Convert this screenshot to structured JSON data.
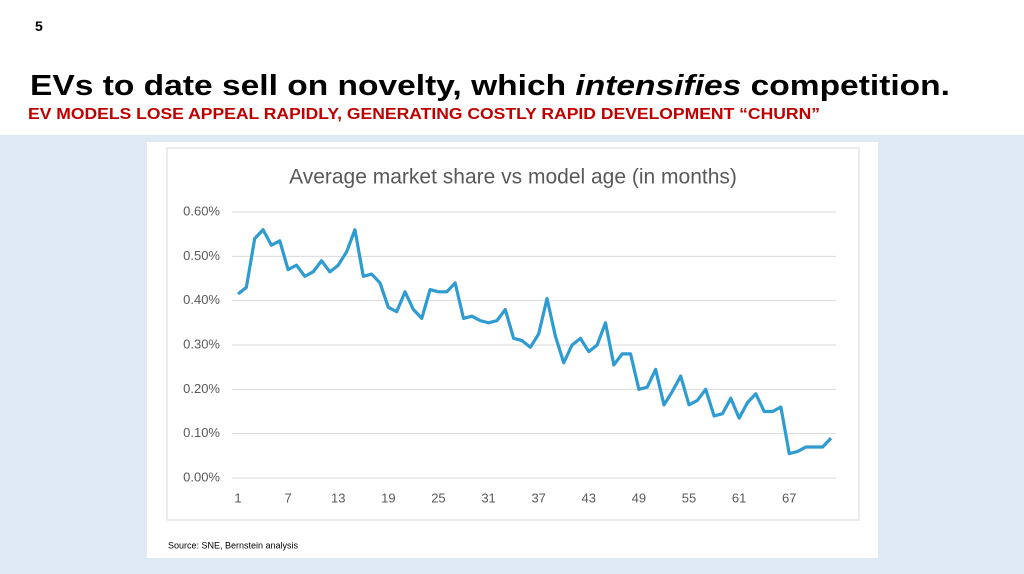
{
  "slide_number": "5",
  "title": [
    "EVs to date sell on novelty, which ",
    "intensifies",
    " competition."
  ],
  "subtitle": "EV MODELS LOSE APPEAL RAPIDLY, GENERATING COSTLY RAPID DEVELOPMENT “CHURN”",
  "chart_data": {
    "type": "line",
    "title": "Average market share vs model age (in months)",
    "source": "Source: SNE, Bernstein analysis",
    "x": [
      1,
      2,
      3,
      4,
      5,
      6,
      7,
      8,
      9,
      10,
      11,
      12,
      13,
      14,
      15,
      16,
      17,
      18,
      19,
      20,
      21,
      22,
      23,
      24,
      25,
      26,
      27,
      28,
      29,
      30,
      31,
      32,
      33,
      34,
      35,
      36,
      37,
      38,
      39,
      40,
      41,
      42,
      43,
      44,
      45,
      46,
      47,
      48,
      49,
      50,
      51,
      52,
      53,
      54,
      55,
      56,
      57,
      58,
      59,
      60,
      61,
      62,
      63,
      64,
      65,
      66,
      67,
      68,
      69,
      70,
      71,
      72
    ],
    "values": [
      0.415,
      0.43,
      0.54,
      0.56,
      0.525,
      0.535,
      0.47,
      0.48,
      0.455,
      0.465,
      0.49,
      0.465,
      0.48,
      0.51,
      0.56,
      0.455,
      0.46,
      0.44,
      0.385,
      0.375,
      0.42,
      0.38,
      0.36,
      0.425,
      0.42,
      0.42,
      0.44,
      0.36,
      0.365,
      0.355,
      0.35,
      0.355,
      0.38,
      0.315,
      0.31,
      0.295,
      0.325,
      0.405,
      0.32,
      0.26,
      0.3,
      0.315,
      0.285,
      0.3,
      0.35,
      0.255,
      0.28,
      0.28,
      0.2,
      0.205,
      0.245,
      0.165,
      0.195,
      0.23,
      0.165,
      0.175,
      0.2,
      0.14,
      0.145,
      0.18,
      0.135,
      0.17,
      0.19,
      0.15,
      0.15,
      0.16,
      0.055,
      0.06,
      0.07,
      0.07,
      0.07,
      0.09
    ],
    "color": "#2e9bd1",
    "xlim": [
      1,
      72
    ],
    "xticks": [
      1,
      7,
      13,
      19,
      25,
      31,
      37,
      43,
      49,
      55,
      61,
      67
    ],
    "ylim": [
      0,
      0.6
    ],
    "yticks": [
      {
        "value": 0,
        "label": "0.00%"
      },
      {
        "value": 0.1,
        "label": "0.10%"
      },
      {
        "value": 0.2,
        "label": "0.20%"
      },
      {
        "value": 0.3,
        "label": "0.30%"
      },
      {
        "value": 0.4,
        "label": "0.40%"
      },
      {
        "value": 0.5,
        "label": "0.50%"
      },
      {
        "value": 0.6,
        "label": "0.60%"
      }
    ],
    "grid": true
  }
}
